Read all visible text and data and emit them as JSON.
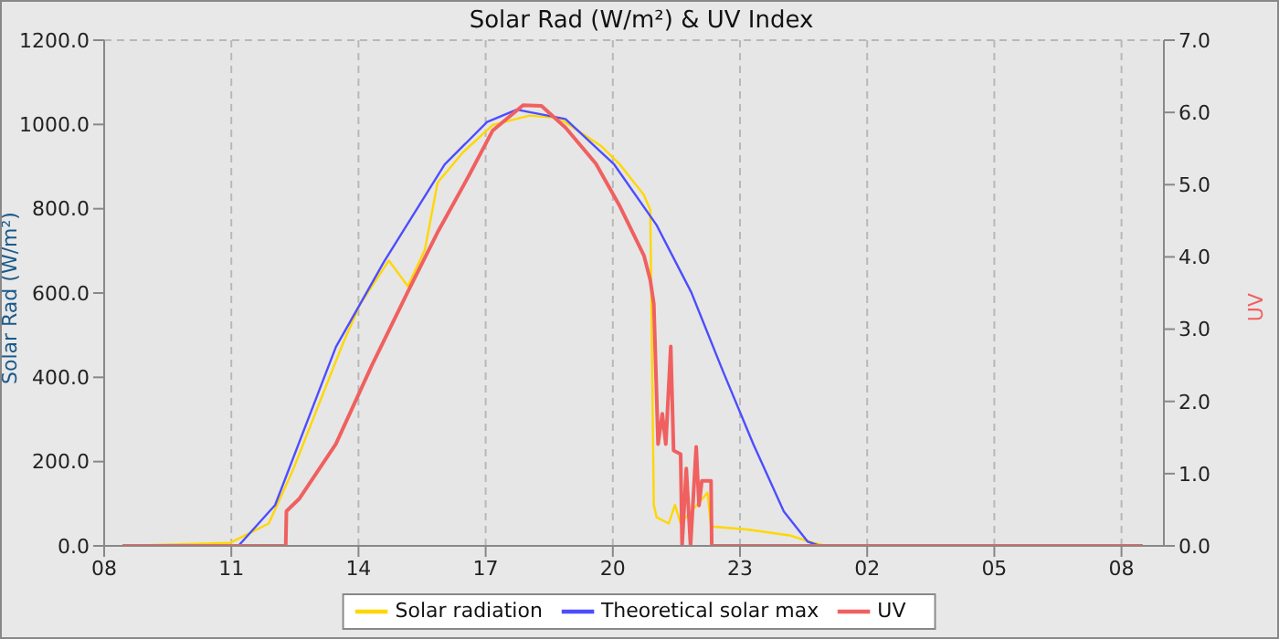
{
  "chart_data": {
    "type": "line",
    "title": "Solar Rad (W/m²) &  UV Index",
    "ylabel": "Solar Rad (W/m²)",
    "y2label": "UV",
    "xlim": [
      "--01-01T08:00",
      "--01-02T09:00"
    ],
    "xticks": [
      {
        "value": "--01-01T08:00",
        "label": "08"
      },
      {
        "value": "--01-01T11:00",
        "label": "11"
      },
      {
        "value": "--01-01T14:00",
        "label": "14"
      },
      {
        "value": "--01-01T17:00",
        "label": "17"
      },
      {
        "value": "--01-01T20:00",
        "label": "20"
      },
      {
        "value": "--01-01T23:00",
        "label": "23"
      },
      {
        "value": "--01-02T02:00",
        "label": "02"
      },
      {
        "value": "--01-02T05:00",
        "label": "05"
      },
      {
        "value": "--01-02T08:00",
        "label": "08"
      }
    ],
    "ylim": [
      0,
      1200
    ],
    "yticks": [
      {
        "value": 0,
        "label": "0.0"
      },
      {
        "value": 200,
        "label": "200.0"
      },
      {
        "value": 400,
        "label": "400.0"
      },
      {
        "value": 600,
        "label": "600.0"
      },
      {
        "value": 800,
        "label": "800.0"
      },
      {
        "value": 1000,
        "label": "1000.0"
      },
      {
        "value": 1200,
        "label": "1200.0"
      }
    ],
    "y2lim": [
      0,
      7
    ],
    "y2ticks": [
      {
        "value": 0,
        "label": "0.0"
      },
      {
        "value": 1,
        "label": "1.0"
      },
      {
        "value": 2,
        "label": "2.0"
      },
      {
        "value": 3,
        "label": "3.0"
      },
      {
        "value": 4,
        "label": "4.0"
      },
      {
        "value": 5,
        "label": "5.0"
      },
      {
        "value": 6,
        "label": "6.0"
      },
      {
        "value": 7,
        "label": "7.0"
      }
    ],
    "grid": true,
    "legend": "bottom",
    "series": [
      {
        "name": "Solar radiation",
        "color": "#ffd700",
        "x": [
          "--01-01T08:26",
          "--01-01T10:58",
          "--01-01T11:53",
          "--01-01T12:28",
          "--01-01T13:19",
          "--01-01T13:36",
          "--01-01T14:02",
          "--01-01T14:43",
          "--01-01T15:10",
          "--01-01T15:34",
          "--01-01T15:52",
          "--01-01T16:28",
          "--01-01T17:10",
          "--01-01T18:02",
          "--01-01T18:44",
          "--01-01T19:44",
          "--01-01T20:10",
          "--01-01T20:44",
          "--01-01T20:53",
          "--01-01T20:58",
          "--01-01T21:02",
          "--01-01T21:19",
          "--01-01T21:28",
          "--01-01T21:36",
          "--01-01T22:14",
          "--01-01T22:19",
          "--01-01T23:10",
          "--01-02T00:10",
          "--01-02T00:44",
          "--01-02T01:02",
          "--01-02T08:30"
        ],
        "values": [
          0,
          7,
          53,
          183,
          400,
          472,
          573,
          677,
          616,
          703,
          862,
          934,
          999,
          1021,
          1015,
          948,
          905,
          833,
          797,
          97,
          68,
          53,
          97,
          53,
          126,
          46,
          39,
          25,
          7,
          0,
          0
        ]
      },
      {
        "name": "Theoretical solar max",
        "color": "#4d4dff",
        "x": [
          "--01-01T08:26",
          "--01-01T11:10",
          "--01-01T12:02",
          "--01-01T13:28",
          "--01-01T14:36",
          "--01-01T16:02",
          "--01-01T17:02",
          "--01-01T17:44",
          "--01-01T18:53",
          "--01-01T20:02",
          "--01-01T21:02",
          "--01-01T21:51",
          "--01-01T22:36",
          "--01-01T23:19",
          "--01-02T00:02",
          "--01-02T00:36",
          "--01-02T00:53",
          "--01-02T08:30"
        ],
        "values": [
          0,
          0,
          97,
          472,
          674,
          905,
          1006,
          1035,
          1013,
          905,
          761,
          602,
          414,
          241,
          82,
          10,
          0,
          0
        ]
      },
      {
        "name": "UV",
        "color": "#f06060",
        "axis": "y2",
        "x": [
          "--01-01T08:26",
          "--01-01T12:17",
          "--01-01T12:18",
          "--01-01T12:36",
          "--01-01T13:28",
          "--01-01T14:19",
          "--01-01T15:10",
          "--01-01T15:53",
          "--01-01T16:36",
          "--01-01T17:10",
          "--01-01T17:53",
          "--01-01T18:19",
          "--01-01T18:53",
          "--01-01T19:36",
          "--01-01T20:10",
          "--01-01T20:44",
          "--01-01T20:53",
          "--01-01T20:58",
          "--01-01T21:02",
          "--01-01T21:04",
          "--01-01T21:10",
          "--01-01T21:15",
          "--01-01T21:22",
          "--01-01T21:26",
          "--01-01T21:36",
          "--01-01T21:38",
          "--01-01T21:44",
          "--01-01T21:50",
          "--01-01T21:58",
          "--01-01T22:02",
          "--01-01T22:06",
          "--01-01T22:19",
          "--01-01T22:20",
          "--01-02T08:30"
        ],
        "values": [
          0,
          0,
          0.48,
          0.65,
          1.41,
          2.5,
          3.52,
          4.36,
          5.12,
          5.75,
          6.1,
          6.09,
          5.79,
          5.29,
          4.7,
          4.02,
          3.68,
          3.35,
          2.08,
          1.41,
          1.83,
          1.41,
          2.76,
          1.32,
          1.27,
          0,
          1.07,
          0,
          1.37,
          0.56,
          0.9,
          0.9,
          0,
          0
        ]
      }
    ]
  }
}
